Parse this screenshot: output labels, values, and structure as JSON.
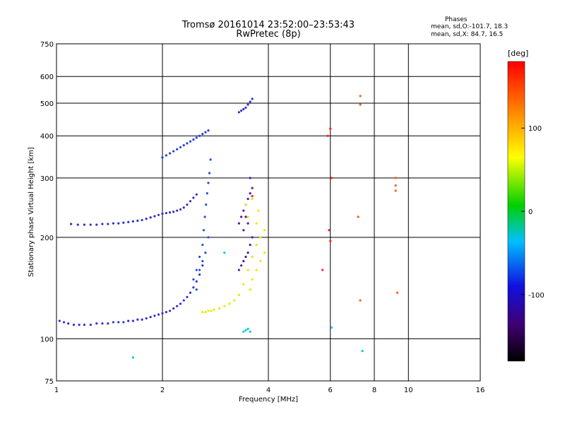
{
  "header": {
    "title_line1": "Tromsø 20161014 23:52:00–23:53:43",
    "title_line2": "RwPretec (8p)",
    "phases_title": "Phases",
    "phases_o": "mean, sd,O:-101.7, 18.3",
    "phases_x": "mean, sd,X:  84.7, 16.5"
  },
  "colorbar": {
    "unit": "[deg]",
    "ticks": [
      "100",
      "0",
      "-100"
    ],
    "tick_values": [
      100,
      0,
      -100
    ],
    "range": [
      -180,
      180
    ]
  },
  "chart_data": {
    "type": "scatter",
    "title": "Tromsø 20161014 23:52:00–23:53:43",
    "subtitle": "RwPretec (8p)",
    "xlabel": "Frequency [MHz]",
    "ylabel": "Stationary phase Virtual Height [km]",
    "x_scale": "log",
    "y_scale": "log",
    "xlim": [
      1,
      16
    ],
    "ylim": [
      75,
      750
    ],
    "x_ticks": [
      1,
      2,
      4,
      6,
      8,
      10,
      16
    ],
    "x_tick_labels": [
      "1",
      "2",
      "4",
      "6",
      "8",
      "10",
      "16"
    ],
    "y_ticks": [
      75,
      100,
      200,
      300,
      400,
      500,
      600,
      750
    ],
    "y_tick_labels": [
      "75",
      "100",
      "200",
      "300",
      "400",
      "500",
      "600",
      "750"
    ],
    "grid": true,
    "series": [
      {
        "color": "#3030d0",
        "x": [
          1.02,
          1.05,
          1.08,
          1.12,
          1.16,
          1.2,
          1.25,
          1.3,
          1.35,
          1.4,
          1.45,
          1.5,
          1.55,
          1.6,
          1.65,
          1.7,
          1.75,
          1.8,
          1.85,
          1.9,
          1.95,
          2.0,
          2.05,
          2.1,
          2.15,
          2.2,
          2.25,
          2.3,
          2.35,
          2.4,
          2.45,
          2.5,
          2.55,
          2.6
        ],
        "y": [
          113,
          112,
          111,
          110,
          110,
          110,
          110,
          111,
          111,
          111,
          112,
          112,
          112,
          113,
          113,
          114,
          114,
          115,
          116,
          117,
          118,
          119,
          120,
          121,
          123,
          125,
          127,
          130,
          133,
          137,
          142,
          148,
          155,
          165
        ]
      },
      {
        "color": "#2050e0",
        "x": [
          2.45,
          2.5,
          2.55,
          2.6,
          2.62,
          2.64,
          2.66,
          2.68,
          2.7,
          2.72,
          2.74,
          2.7,
          2.65,
          2.6,
          2.55,
          2.5
        ],
        "y": [
          150,
          160,
          175,
          190,
          210,
          230,
          250,
          270,
          290,
          310,
          340,
          200,
          180,
          170,
          160,
          140
        ]
      },
      {
        "color": "#3030c0",
        "x": [
          1.1,
          1.15,
          1.2,
          1.25,
          1.3,
          1.35,
          1.4,
          1.45,
          1.5,
          1.55,
          1.6,
          1.65,
          1.7,
          1.75,
          1.8,
          1.85,
          1.9,
          1.95,
          2.0,
          2.05,
          2.1,
          2.15,
          2.2,
          2.25,
          2.3,
          2.35,
          2.4,
          2.45,
          2.5
        ],
        "y": [
          219,
          218,
          218,
          218,
          218,
          219,
          219,
          220,
          220,
          221,
          222,
          223,
          224,
          225,
          227,
          229,
          231,
          233,
          235,
          236,
          237,
          238,
          240,
          242,
          245,
          250,
          256,
          262,
          268
        ]
      },
      {
        "color": "#2040e0",
        "x": [
          2.0,
          2.05,
          2.1,
          2.15,
          2.2,
          2.25,
          2.3,
          2.35,
          2.4,
          2.45,
          2.5,
          2.55,
          2.6,
          2.65,
          2.7
        ],
        "y": [
          345,
          350,
          355,
          360,
          365,
          370,
          375,
          380,
          385,
          390,
          395,
          400,
          405,
          410,
          415
        ]
      },
      {
        "color": "#5018a0",
        "x": [
          3.3,
          3.35,
          3.4,
          3.45,
          3.5,
          3.55,
          3.6,
          3.6,
          3.55,
          3.5,
          3.45,
          3.4,
          3.35,
          3.3,
          3.4,
          3.5,
          3.45,
          3.55
        ],
        "y": [
          220,
          230,
          240,
          250,
          260,
          270,
          280,
          200,
          190,
          180,
          175,
          170,
          165,
          160,
          210,
          220,
          230,
          300
        ]
      },
      {
        "color": "#e8e800",
        "x": [
          2.6,
          2.65,
          2.7,
          2.75,
          2.8,
          2.9,
          3.0,
          3.1,
          3.2,
          3.3,
          3.4,
          3.5,
          3.6,
          3.7,
          3.8,
          3.9,
          3.9,
          3.8,
          3.7,
          3.6,
          3.55,
          3.5,
          3.45,
          3.6,
          3.7,
          3.75
        ],
        "y": [
          120,
          120,
          121,
          121,
          122,
          123,
          125,
          127,
          130,
          135,
          145,
          160,
          175,
          190,
          200,
          210,
          180,
          170,
          160,
          150,
          140,
          230,
          250,
          260,
          220,
          240
        ]
      },
      {
        "color": "#3030d0",
        "x": [
          3.3,
          3.35,
          3.4,
          3.45,
          3.5,
          3.55,
          3.6
        ],
        "y": [
          470,
          475,
          480,
          485,
          495,
          505,
          515
        ]
      },
      {
        "color": "#ff6000",
        "x": [
          7.3,
          7.3,
          9.2,
          9.2,
          9.2,
          7.2,
          9.3,
          7.3
        ],
        "y": [
          525,
          495,
          300,
          285,
          275,
          230,
          137,
          130
        ]
      },
      {
        "color": "#00c8e0",
        "x": [
          3.4,
          3.45,
          3.5,
          3.55,
          6.05,
          7.4,
          1.65,
          3.0
        ],
        "y": [
          105,
          106,
          107,
          105,
          108,
          92,
          88,
          180
        ]
      },
      {
        "color": "#ff2020",
        "x": [
          5.95,
          6.0,
          6.05,
          5.9,
          6.0,
          3.6,
          5.7
        ],
        "y": [
          210,
          195,
          300,
          400,
          420,
          265,
          160
        ]
      }
    ]
  }
}
